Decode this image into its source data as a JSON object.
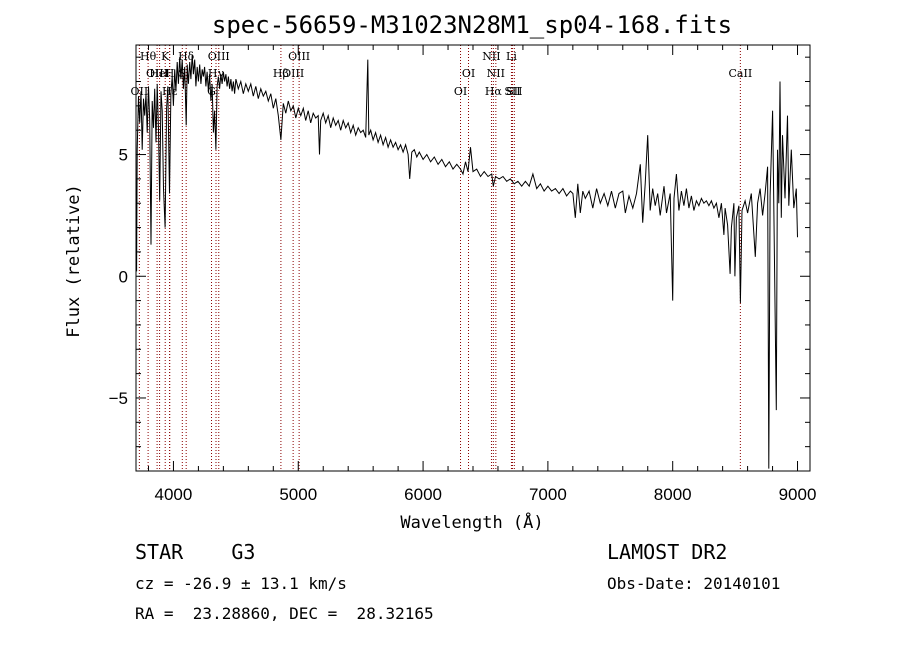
{
  "chart_data": {
    "type": "line",
    "title": "spec-56659-M31023N28M1_sp04-168.fits",
    "xlabel": "Wavelength (Å)",
    "ylabel": "Flux (relative)",
    "xlim": [
      3700,
      9100
    ],
    "ylim": [
      -8,
      9.5
    ],
    "x_ticks": [
      4000,
      5000,
      6000,
      7000,
      8000,
      9000
    ],
    "y_ticks": [
      -5,
      0,
      5
    ],
    "grid": false,
    "series": [
      {
        "color": "#000000",
        "points": [
          [
            3700,
            2.3
          ],
          [
            3705,
            0.2
          ],
          [
            3710,
            5.2
          ],
          [
            3720,
            7.4
          ],
          [
            3730,
            6.3
          ],
          [
            3740,
            7.6
          ],
          [
            3750,
            5.2
          ],
          [
            3760,
            7.3
          ],
          [
            3770,
            6.6
          ],
          [
            3780,
            7.5
          ],
          [
            3790,
            5.9
          ],
          [
            3800,
            7.8
          ],
          [
            3810,
            6.4
          ],
          [
            3820,
            1.3
          ],
          [
            3830,
            7.2
          ],
          [
            3840,
            6.1
          ],
          [
            3850,
            7.7
          ],
          [
            3860,
            5.5
          ],
          [
            3870,
            7.9
          ],
          [
            3880,
            6.0
          ],
          [
            3890,
            3.1
          ],
          [
            3900,
            7.6
          ],
          [
            3910,
            6.8
          ],
          [
            3920,
            3.6
          ],
          [
            3933,
            2.0
          ],
          [
            3945,
            6.9
          ],
          [
            3955,
            7.8
          ],
          [
            3968,
            3.4
          ],
          [
            3980,
            7.5
          ],
          [
            3990,
            8.2
          ],
          [
            4000,
            7.0
          ],
          [
            4010,
            8.5
          ],
          [
            4020,
            7.6
          ],
          [
            4030,
            8.8
          ],
          [
            4040,
            7.9
          ],
          [
            4050,
            9.0
          ],
          [
            4060,
            8.1
          ],
          [
            4070,
            8.9
          ],
          [
            4080,
            7.7
          ],
          [
            4090,
            8.6
          ],
          [
            4102,
            6.2
          ],
          [
            4110,
            8.7
          ],
          [
            4120,
            7.9
          ],
          [
            4130,
            8.8
          ],
          [
            4140,
            8.1
          ],
          [
            4150,
            9.1
          ],
          [
            4160,
            8.3
          ],
          [
            4170,
            8.9
          ],
          [
            4180,
            7.8
          ],
          [
            4190,
            8.6
          ],
          [
            4200,
            8.0
          ],
          [
            4210,
            8.7
          ],
          [
            4220,
            7.9
          ],
          [
            4230,
            8.5
          ],
          [
            4240,
            8.2
          ],
          [
            4250,
            8.6
          ],
          [
            4260,
            7.8
          ],
          [
            4270,
            8.4
          ],
          [
            4280,
            7.6
          ],
          [
            4290,
            8.3
          ],
          [
            4300,
            7.2
          ],
          [
            4310,
            7.9
          ],
          [
            4320,
            5.9
          ],
          [
            4330,
            6.8
          ],
          [
            4340,
            5.2
          ],
          [
            4350,
            7.8
          ],
          [
            4360,
            8.2
          ],
          [
            4370,
            7.7
          ],
          [
            4380,
            8.3
          ],
          [
            4390,
            7.9
          ],
          [
            4400,
            8.4
          ],
          [
            4410,
            8.0
          ],
          [
            4420,
            8.3
          ],
          [
            4430,
            7.8
          ],
          [
            4440,
            8.2
          ],
          [
            4450,
            7.7
          ],
          [
            4460,
            8.1
          ],
          [
            4470,
            7.6
          ],
          [
            4480,
            8.0
          ],
          [
            4490,
            7.5
          ],
          [
            4500,
            8.1
          ],
          [
            4520,
            7.7
          ],
          [
            4540,
            8.0
          ],
          [
            4560,
            7.5
          ],
          [
            4580,
            7.9
          ],
          [
            4600,
            7.6
          ],
          [
            4620,
            7.9
          ],
          [
            4640,
            7.4
          ],
          [
            4660,
            7.8
          ],
          [
            4680,
            7.3
          ],
          [
            4700,
            7.7
          ],
          [
            4720,
            7.4
          ],
          [
            4740,
            7.6
          ],
          [
            4760,
            7.2
          ],
          [
            4780,
            7.5
          ],
          [
            4800,
            6.9
          ],
          [
            4820,
            7.3
          ],
          [
            4840,
            6.6
          ],
          [
            4861,
            5.6
          ],
          [
            4880,
            7.1
          ],
          [
            4900,
            6.7
          ],
          [
            4920,
            7.2
          ],
          [
            4940,
            6.8
          ],
          [
            4960,
            7.0
          ],
          [
            4980,
            6.5
          ],
          [
            5000,
            6.9
          ],
          [
            5020,
            6.6
          ],
          [
            5040,
            6.9
          ],
          [
            5060,
            6.4
          ],
          [
            5080,
            6.8
          ],
          [
            5100,
            6.3
          ],
          [
            5120,
            6.7
          ],
          [
            5140,
            6.5
          ],
          [
            5160,
            6.6
          ],
          [
            5170,
            5.0
          ],
          [
            5180,
            6.4
          ],
          [
            5200,
            6.7
          ],
          [
            5220,
            6.3
          ],
          [
            5240,
            6.6
          ],
          [
            5260,
            6.1
          ],
          [
            5280,
            6.5
          ],
          [
            5300,
            6.2
          ],
          [
            5320,
            6.4
          ],
          [
            5340,
            6.0
          ],
          [
            5360,
            6.4
          ],
          [
            5380,
            6.1
          ],
          [
            5400,
            6.3
          ],
          [
            5420,
            5.9
          ],
          [
            5440,
            6.2
          ],
          [
            5460,
            5.8
          ],
          [
            5480,
            6.1
          ],
          [
            5500,
            5.9
          ],
          [
            5520,
            6.0
          ],
          [
            5540,
            5.7
          ],
          [
            5557,
            8.9
          ],
          [
            5565,
            5.8
          ],
          [
            5580,
            6.0
          ],
          [
            5600,
            5.6
          ],
          [
            5620,
            5.9
          ],
          [
            5640,
            5.5
          ],
          [
            5660,
            5.8
          ],
          [
            5680,
            5.4
          ],
          [
            5700,
            5.7
          ],
          [
            5720,
            5.3
          ],
          [
            5740,
            5.6
          ],
          [
            5760,
            5.3
          ],
          [
            5780,
            5.5
          ],
          [
            5800,
            5.2
          ],
          [
            5820,
            5.4
          ],
          [
            5840,
            5.1
          ],
          [
            5860,
            5.4
          ],
          [
            5880,
            5.0
          ],
          [
            5893,
            4.0
          ],
          [
            5910,
            5.1
          ],
          [
            5930,
            5.2
          ],
          [
            5950,
            4.9
          ],
          [
            5970,
            5.1
          ],
          [
            6000,
            4.8
          ],
          [
            6030,
            5.0
          ],
          [
            6060,
            4.7
          ],
          [
            6090,
            4.9
          ],
          [
            6120,
            4.6
          ],
          [
            6150,
            4.8
          ],
          [
            6180,
            4.5
          ],
          [
            6210,
            4.7
          ],
          [
            6240,
            4.4
          ],
          [
            6270,
            4.6
          ],
          [
            6300,
            4.4
          ],
          [
            6320,
            4.2
          ],
          [
            6340,
            4.7
          ],
          [
            6360,
            4.3
          ],
          [
            6380,
            5.3
          ],
          [
            6400,
            4.3
          ],
          [
            6430,
            4.4
          ],
          [
            6460,
            4.1
          ],
          [
            6490,
            4.3
          ],
          [
            6520,
            4.1
          ],
          [
            6550,
            4.2
          ],
          [
            6563,
            3.7
          ],
          [
            6580,
            4.1
          ],
          [
            6610,
            4.0
          ],
          [
            6640,
            4.1
          ],
          [
            6670,
            3.9
          ],
          [
            6700,
            4.0
          ],
          [
            6730,
            3.8
          ],
          [
            6760,
            3.9
          ],
          [
            6790,
            3.7
          ],
          [
            6820,
            3.9
          ],
          [
            6850,
            3.7
          ],
          [
            6880,
            4.2
          ],
          [
            6910,
            3.6
          ],
          [
            6940,
            3.8
          ],
          [
            6970,
            3.5
          ],
          [
            7000,
            3.7
          ],
          [
            7030,
            3.5
          ],
          [
            7060,
            3.6
          ],
          [
            7090,
            3.4
          ],
          [
            7120,
            3.6
          ],
          [
            7150,
            3.3
          ],
          [
            7180,
            3.5
          ],
          [
            7200,
            3.4
          ],
          [
            7220,
            2.4
          ],
          [
            7240,
            3.8
          ],
          [
            7260,
            2.6
          ],
          [
            7280,
            3.5
          ],
          [
            7300,
            3.2
          ],
          [
            7330,
            3.5
          ],
          [
            7360,
            2.8
          ],
          [
            7390,
            3.6
          ],
          [
            7420,
            3.0
          ],
          [
            7450,
            3.4
          ],
          [
            7480,
            2.9
          ],
          [
            7510,
            3.5
          ],
          [
            7540,
            2.8
          ],
          [
            7570,
            3.4
          ],
          [
            7600,
            3.5
          ],
          [
            7620,
            2.6
          ],
          [
            7650,
            3.3
          ],
          [
            7680,
            2.8
          ],
          [
            7710,
            3.4
          ],
          [
            7740,
            4.6
          ],
          [
            7760,
            2.2
          ],
          [
            7780,
            3.8
          ],
          [
            7800,
            5.8
          ],
          [
            7820,
            2.7
          ],
          [
            7840,
            3.6
          ],
          [
            7860,
            2.9
          ],
          [
            7880,
            3.4
          ],
          [
            7900,
            2.5
          ],
          [
            7930,
            3.7
          ],
          [
            7950,
            2.6
          ],
          [
            7980,
            3.4
          ],
          [
            8000,
            -1.0
          ],
          [
            8010,
            3.2
          ],
          [
            8030,
            4.2
          ],
          [
            8050,
            2.7
          ],
          [
            8070,
            3.5
          ],
          [
            8090,
            2.9
          ],
          [
            8110,
            3.6
          ],
          [
            8130,
            2.8
          ],
          [
            8150,
            3.3
          ],
          [
            8170,
            2.7
          ],
          [
            8190,
            3.1
          ],
          [
            8210,
            2.9
          ],
          [
            8230,
            3.2
          ],
          [
            8250,
            3.0
          ],
          [
            8270,
            3.1
          ],
          [
            8290,
            2.9
          ],
          [
            8310,
            3.1
          ],
          [
            8330,
            2.8
          ],
          [
            8350,
            3.0
          ],
          [
            8370,
            2.4
          ],
          [
            8390,
            3.0
          ],
          [
            8410,
            1.7
          ],
          [
            8420,
            2.8
          ],
          [
            8440,
            2.1
          ],
          [
            8460,
            0.1
          ],
          [
            8470,
            2.0
          ],
          [
            8490,
            3.0
          ],
          [
            8498,
            0.0
          ],
          [
            8510,
            2.4
          ],
          [
            8530,
            2.9
          ],
          [
            8542,
            -1.1
          ],
          [
            8555,
            2.7
          ],
          [
            8580,
            3.1
          ],
          [
            8600,
            2.6
          ],
          [
            8630,
            3.4
          ],
          [
            8662,
            0.8
          ],
          [
            8680,
            3.0
          ],
          [
            8700,
            3.6
          ],
          [
            8720,
            2.5
          ],
          [
            8740,
            3.4
          ],
          [
            8760,
            4.5
          ],
          [
            8770,
            -7.9
          ],
          [
            8780,
            3.3
          ],
          [
            8800,
            6.8
          ],
          [
            8810,
            2.9
          ],
          [
            8830,
            -5.5
          ],
          [
            8840,
            5.2
          ],
          [
            8850,
            3.0
          ],
          [
            8860,
            8.0
          ],
          [
            8870,
            2.4
          ],
          [
            8880,
            5.8
          ],
          [
            8900,
            3.2
          ],
          [
            8920,
            6.6
          ],
          [
            8930,
            2.9
          ],
          [
            8950,
            5.2
          ],
          [
            8970,
            2.8
          ],
          [
            8990,
            3.6
          ],
          [
            9000,
            1.6
          ]
        ]
      }
    ],
    "emission_lines": [
      {
        "label": "OII",
        "wavelength": 3727,
        "row": 2
      },
      {
        "label": "Hθ",
        "wavelength": 3797,
        "row": 0
      },
      {
        "label": "OIII",
        "wavelength": 3869,
        "row": 1
      },
      {
        "label": "HeI",
        "wavelength": 3889,
        "row": 1
      },
      {
        "label": "K",
        "wavelength": 3934,
        "row": 0
      },
      {
        "label": "H",
        "wavelength": 3969,
        "row": 1
      },
      {
        "label": "Hε",
        "wavelength": 3970,
        "row": 2
      },
      {
        "label": "S",
        "wavelength": 4071,
        "row": 1
      },
      {
        "label": "Hδ",
        "wavelength": 4102,
        "row": 0
      },
      {
        "label": "G",
        "wavelength": 4305,
        "row": 2
      },
      {
        "label": "Hγ",
        "wavelength": 4341,
        "row": 1
      },
      {
        "label": "OIII",
        "wavelength": 4363,
        "row": 0
      },
      {
        "label": "Hβ",
        "wavelength": 4861,
        "row": 1
      },
      {
        "label": "OIII",
        "wavelength": 4959,
        "row": 1
      },
      {
        "label": "OIII",
        "wavelength": 5007,
        "row": 0
      },
      {
        "label": "OI",
        "wavelength": 6300,
        "row": 2
      },
      {
        "label": "OI",
        "wavelength": 6364,
        "row": 1
      },
      {
        "label": "NII",
        "wavelength": 6548,
        "row": 0
      },
      {
        "label": "Hα",
        "wavelength": 6563,
        "row": 2
      },
      {
        "label": "NII",
        "wavelength": 6583,
        "row": 1
      },
      {
        "label": "Li",
        "wavelength": 6708,
        "row": 0
      },
      {
        "label": "SII",
        "wavelength": 6716,
        "row": 2
      },
      {
        "label": "SII",
        "wavelength": 6731,
        "row": 2
      },
      {
        "label": "CaII",
        "wavelength": 8542,
        "row": 1
      }
    ],
    "line_color": "#8b0000"
  },
  "info": {
    "classification": "STAR    G3",
    "survey": "LAMOST DR2",
    "cz": "cz = -26.9 ± 13.1 km/s",
    "obs_date": "Obs-Date: 20140101",
    "radec": "RA =  23.28860, DEC =  28.32165"
  }
}
